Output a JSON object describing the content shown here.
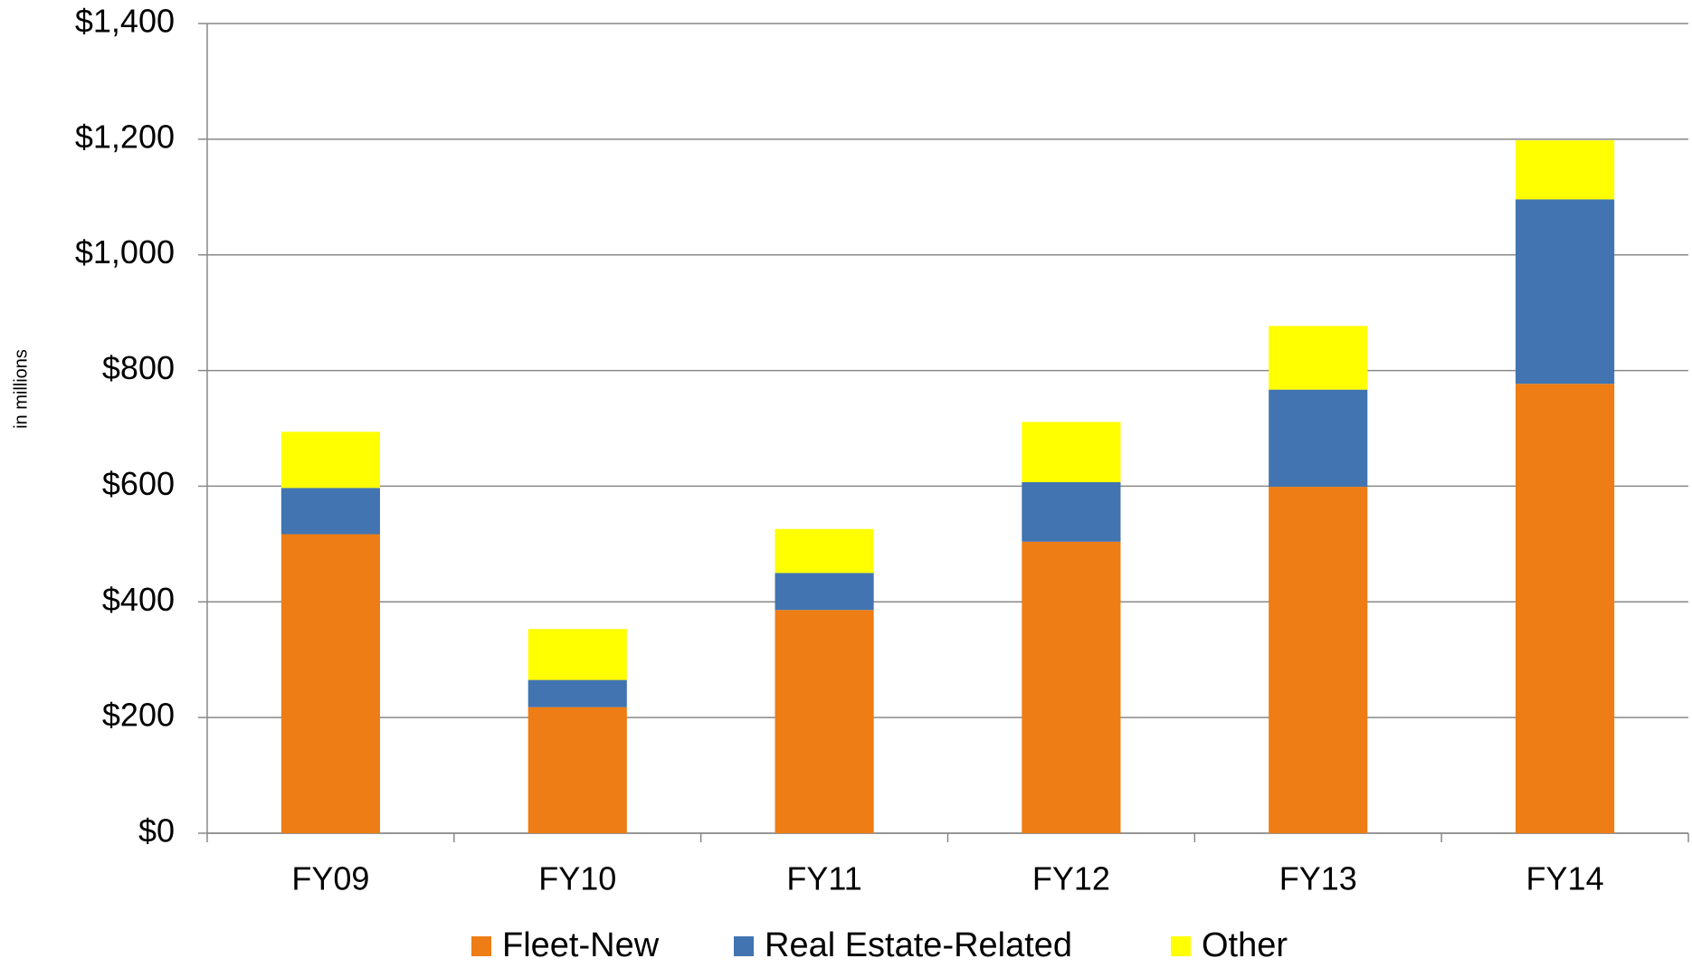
{
  "chart_data": {
    "type": "stacked_bar",
    "y_label": "in millions",
    "categories": [
      "FY09",
      "FY10",
      "FY11",
      "FY12",
      "FY13",
      "FY14"
    ],
    "series": [
      {
        "name": "Fleet-New",
        "color": "#ed7d14",
        "values": [
          517,
          218,
          386,
          504,
          599,
          777
        ]
      },
      {
        "name": "Real Estate-Related",
        "color": "#4174b0",
        "values": [
          80,
          47,
          64,
          103,
          168,
          319
        ]
      },
      {
        "name": "Other",
        "color": "#ffff00",
        "values": [
          97,
          88,
          76,
          104,
          110,
          102
        ]
      }
    ],
    "ylim": [
      0,
      1400
    ],
    "yticks": [
      {
        "value": 0,
        "label": "$0"
      },
      {
        "value": 200,
        "label": "$200"
      },
      {
        "value": 400,
        "label": "$400"
      },
      {
        "value": 600,
        "label": "$600"
      },
      {
        "value": 800,
        "label": "$800"
      },
      {
        "value": 1000,
        "label": "$1,000"
      },
      {
        "value": 1200,
        "label": "$1,200"
      },
      {
        "value": 1400,
        "label": "$1,400"
      }
    ],
    "grid": true,
    "legend": "bottom"
  }
}
